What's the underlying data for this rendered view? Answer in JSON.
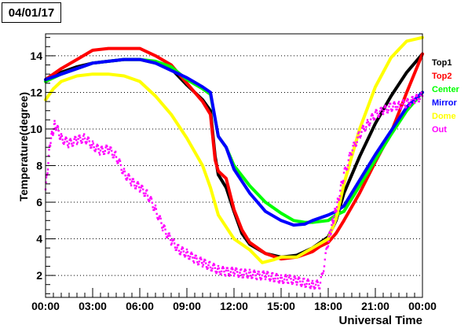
{
  "chart_data": {
    "type": "line",
    "title": "04/01/17",
    "xlabel": "Universal Time",
    "ylabel": "Temperature(degree)",
    "xlim": [
      0,
      24
    ],
    "ylim": [
      0.8,
      15.2
    ],
    "x_ticks": [
      "00:00",
      "03:00",
      "06:00",
      "09:00",
      "12:00",
      "15:00",
      "18:00",
      "21:00",
      "00:00"
    ],
    "y_ticks": [
      2,
      4,
      6,
      8,
      10,
      12,
      14
    ],
    "grid": "horizontal dotted",
    "legend_placement": "right",
    "series": [
      {
        "name": "Top1",
        "color": "#000000",
        "x": [
          0,
          1,
          2,
          3,
          4,
          5,
          6,
          7,
          8,
          9,
          10,
          10.5,
          10.8,
          11,
          11.5,
          12,
          12.5,
          13,
          14,
          15,
          16,
          17,
          17.5,
          18,
          18.5,
          19,
          20,
          21,
          22,
          23,
          24
        ],
        "y": [
          12.6,
          13.1,
          13.4,
          13.6,
          13.7,
          13.8,
          13.8,
          13.6,
          13.3,
          12.4,
          11.6,
          11.0,
          8.5,
          7.5,
          6.8,
          5.5,
          4.3,
          3.7,
          3.2,
          3.0,
          3.1,
          3.5,
          3.8,
          4.1,
          5.0,
          6.5,
          8.5,
          10.3,
          11.8,
          13.1,
          14.1
        ]
      },
      {
        "name": "Top2",
        "color": "#ff0000",
        "x": [
          0,
          1,
          2,
          3,
          4,
          5,
          6,
          7,
          8,
          9,
          10,
          10.5,
          10.8,
          11,
          11.5,
          12,
          12.5,
          13,
          14,
          15,
          16,
          17,
          17.5,
          18,
          18.5,
          19,
          20,
          21,
          22,
          23,
          24
        ],
        "y": [
          12.7,
          13.3,
          13.8,
          14.3,
          14.4,
          14.4,
          14.4,
          14.0,
          13.5,
          12.5,
          11.5,
          10.8,
          8.3,
          7.7,
          7.3,
          5.6,
          4.5,
          3.8,
          3.2,
          2.9,
          3.0,
          3.3,
          3.6,
          3.8,
          4.3,
          5.0,
          6.5,
          8.2,
          9.8,
          12.0,
          14.1
        ]
      },
      {
        "name": "Center",
        "color": "#00ff00",
        "x": [
          0,
          1,
          2,
          3,
          4,
          5,
          6,
          7,
          8,
          9,
          10,
          10.5,
          11,
          11.5,
          12,
          13,
          14,
          15,
          15.8,
          16.5,
          17,
          18,
          18.5,
          19,
          20,
          21,
          22,
          23,
          24
        ],
        "y": [
          12.6,
          13.0,
          13.3,
          13.6,
          13.7,
          13.8,
          13.8,
          13.7,
          13.4,
          12.7,
          12.2,
          11.9,
          9.6,
          9.0,
          8.0,
          6.9,
          6.0,
          5.4,
          5.0,
          4.9,
          4.9,
          5.0,
          5.3,
          5.5,
          6.9,
          8.3,
          9.7,
          11.0,
          12.0
        ]
      },
      {
        "name": "Mirror",
        "color": "#0000ff",
        "x": [
          0,
          1,
          2,
          3,
          4,
          5,
          6,
          7,
          8,
          9,
          10,
          10.5,
          11,
          11.5,
          12,
          13,
          14,
          15,
          15.8,
          16.5,
          17,
          18,
          18.5,
          19,
          20,
          21,
          22,
          23,
          24
        ],
        "y": [
          12.7,
          13.0,
          13.3,
          13.6,
          13.7,
          13.8,
          13.8,
          13.6,
          13.2,
          12.8,
          12.3,
          12.0,
          9.6,
          9.0,
          7.8,
          6.5,
          5.5,
          5.0,
          4.75,
          4.8,
          5.0,
          5.3,
          5.5,
          5.8,
          7.2,
          8.6,
          9.9,
          11.2,
          12.0
        ]
      },
      {
        "name": "Dome",
        "color": "#ffff00",
        "x": [
          0,
          0.5,
          1,
          2,
          3,
          4,
          5,
          6,
          7,
          8,
          9,
          10,
          10.5,
          11,
          12,
          13,
          13.8,
          14.5,
          15,
          16,
          17,
          18,
          18.5,
          19,
          20,
          21,
          22,
          23,
          24
        ],
        "y": [
          11.6,
          12.2,
          12.6,
          12.9,
          13.0,
          13.0,
          12.9,
          12.6,
          11.8,
          10.8,
          9.5,
          8.0,
          6.8,
          5.3,
          4.0,
          3.4,
          2.7,
          2.85,
          3.0,
          3.0,
          3.5,
          4.0,
          5.1,
          7.0,
          10.0,
          12.3,
          13.9,
          14.8,
          15.0
        ]
      },
      {
        "name": "Out",
        "color": "#ff00ff",
        "x": [
          0,
          0.3,
          0.6,
          1,
          1.5,
          2,
          2.5,
          3,
          3.5,
          4,
          4.5,
          5,
          5.5,
          6,
          6.5,
          7,
          7.5,
          8,
          8.5,
          9,
          9.5,
          10,
          10.5,
          11,
          11.5,
          12,
          12.5,
          13,
          13.5,
          14,
          14.5,
          15,
          15.5,
          16,
          16.5,
          17,
          17.5,
          18,
          18.3,
          18.6,
          19,
          19.5,
          20,
          20.5,
          21,
          21.5,
          22,
          22.5,
          23,
          23.5,
          24
        ],
        "y": [
          6.7,
          9.3,
          10.3,
          9.5,
          9.2,
          9.4,
          9.5,
          9.1,
          8.8,
          8.9,
          8.5,
          7.6,
          7.1,
          6.8,
          6.4,
          5.6,
          4.6,
          3.9,
          3.4,
          3.2,
          2.9,
          2.7,
          2.5,
          2.3,
          2.2,
          2.2,
          2.1,
          2.1,
          2.0,
          2.0,
          1.9,
          1.8,
          1.8,
          1.7,
          1.6,
          1.5,
          1.5,
          3.8,
          5.0,
          6.0,
          7.5,
          8.8,
          9.7,
          10.3,
          10.8,
          11.0,
          11.2,
          11.3,
          11.4,
          11.6,
          11.8
        ]
      }
    ]
  }
}
